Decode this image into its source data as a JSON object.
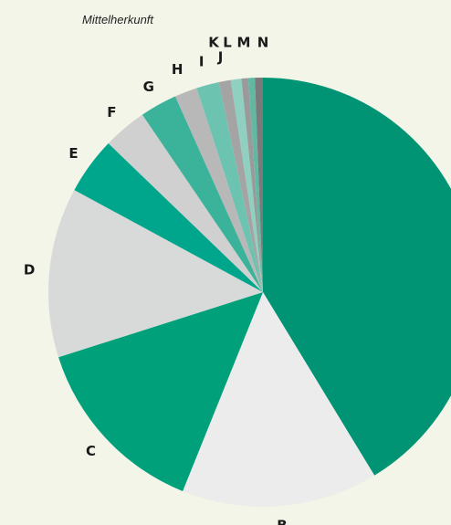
{
  "chart_data": {
    "type": "pie",
    "title": "Mittelherkunft",
    "categories": [
      null,
      "B",
      "C",
      "D",
      "E",
      "F",
      "G",
      "H",
      "I",
      "J",
      "K",
      "L",
      "M",
      "N"
    ],
    "values": [
      41.3,
      14.8,
      14.0,
      12.8,
      4.3,
      3.3,
      2.8,
      1.7,
      1.7,
      0.9,
      0.8,
      0.5,
      0.5,
      0.6
    ],
    "colors": [
      "#009474",
      "#ececec",
      "#00a07a",
      "#d8d9d9",
      "#00a68c",
      "#d0d0d0",
      "#3bb39a",
      "#b8b8b8",
      "#6cc4b0",
      "#a4a4a4",
      "#8fd0c0",
      "#9a9a9a",
      "#62b8a2",
      "#7a7a7a"
    ]
  }
}
